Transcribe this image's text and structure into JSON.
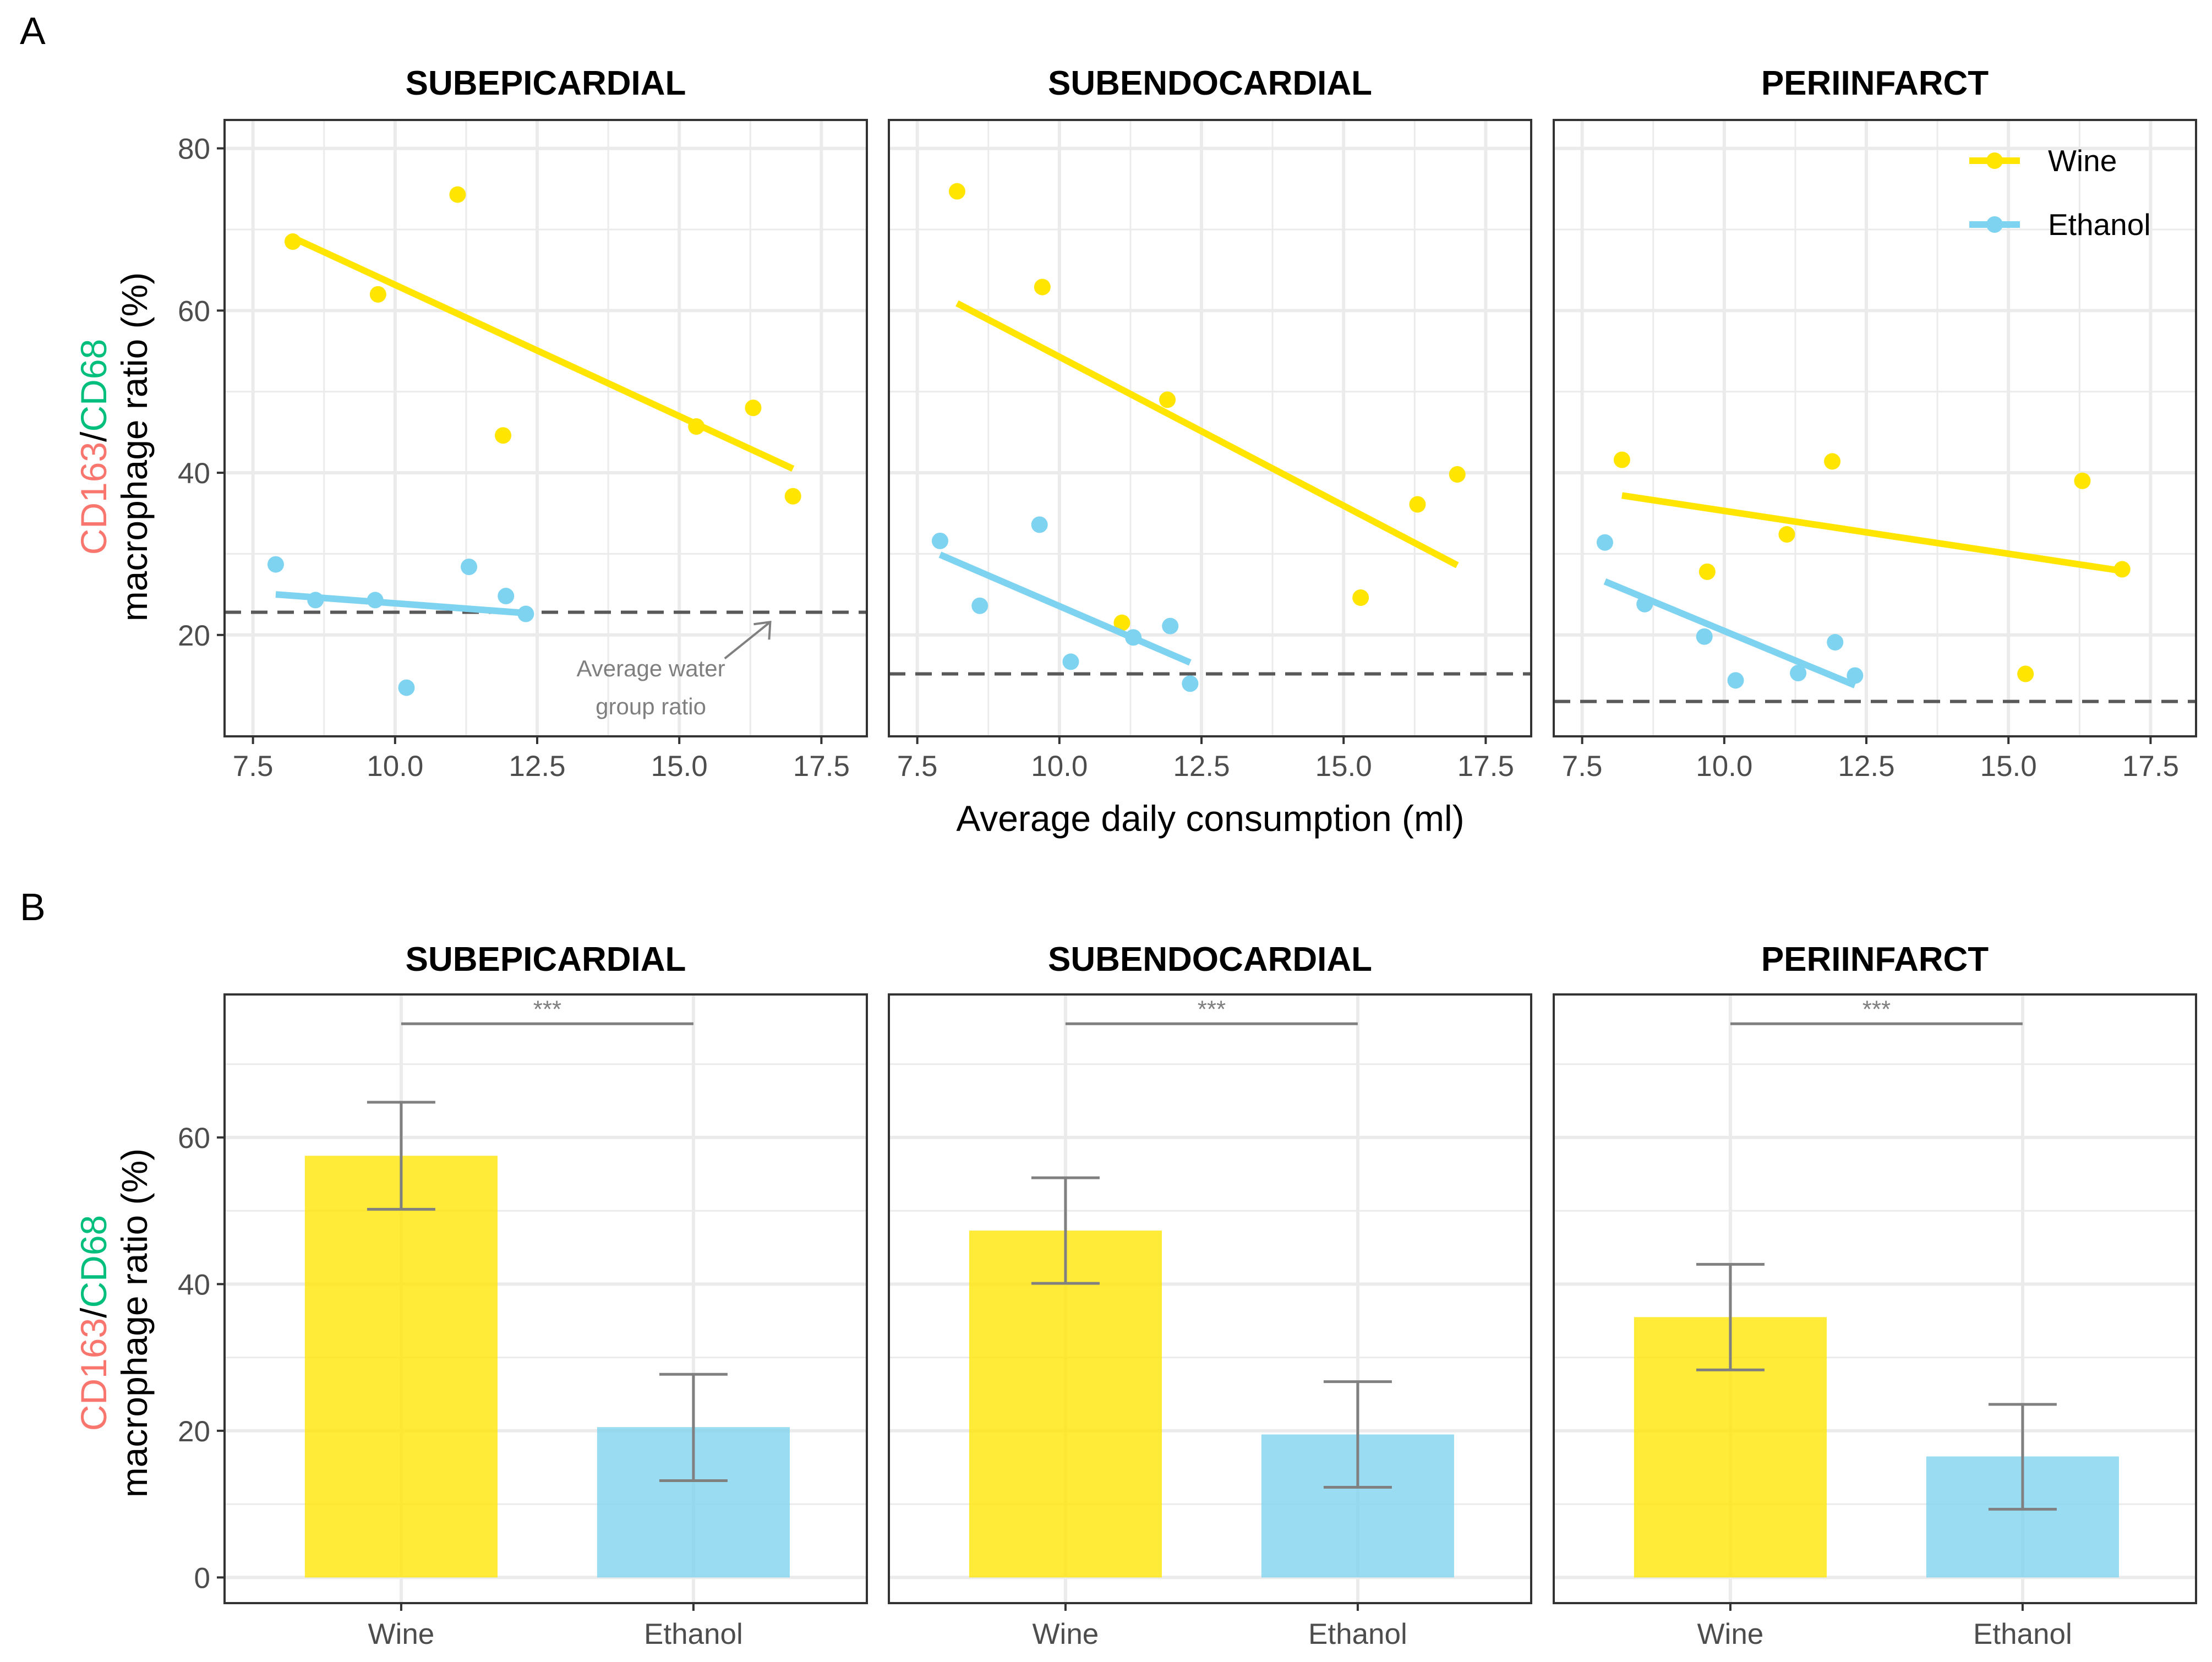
{
  "panel_labels": [
    "A",
    "B"
  ],
  "facets": [
    "SUBEPICARDIAL",
    "SUBENDOCARDIAL",
    "PERIINFARCT"
  ],
  "colors": {
    "wine": "#FFE500",
    "ethanol": "#7ED3F0",
    "ylab_cd163": "#F8766D",
    "ylab_cd68": "#00BF7D",
    "water_line": "#595959",
    "errorbar": "#808080",
    "grid": "#EBEBEB",
    "panel_border": "#333333"
  },
  "ylabel": {
    "part_cd163": "CD163",
    "part_sep": "/",
    "part_cd68": "CD68",
    "line2": "macrophage ratio (%)"
  },
  "chart_data": [
    {
      "type": "scatter",
      "panel": "A",
      "xlabel": "Average daily consumption (ml)",
      "xlim": [
        7.0,
        18.3
      ],
      "ylim": [
        7.5,
        83.5
      ],
      "xticks": [
        "7.5",
        "10.0",
        "12.5",
        "15.0",
        "17.5"
      ],
      "yticks": [
        "20",
        "40",
        "60",
        "80"
      ],
      "legend": {
        "position": "top-right",
        "entries": [
          "Wine",
          "Ethanol"
        ]
      },
      "annotation": [
        "Average water",
        "group ratio"
      ],
      "facets": [
        {
          "name": "SUBEPICARDIAL",
          "water_avg": 22.8,
          "series": [
            {
              "name": "Wine",
              "points": [
                [
                  8.2,
                  68.5
                ],
                [
                  9.7,
                  62.0
                ],
                [
                  11.1,
                  74.3
                ],
                [
                  11.9,
                  44.6
                ],
                [
                  15.3,
                  45.7
                ],
                [
                  16.3,
                  48.0
                ],
                [
                  17.0,
                  37.1
                ]
              ],
              "fit": [
                [
                  8.2,
                  69.0
                ],
                [
                  17.0,
                  40.5
                ]
              ]
            },
            {
              "name": "Ethanol",
              "points": [
                [
                  7.9,
                  28.7
                ],
                [
                  8.6,
                  24.3
                ],
                [
                  9.65,
                  24.3
                ],
                [
                  10.2,
                  13.5
                ],
                [
                  11.3,
                  28.4
                ],
                [
                  11.95,
                  24.8
                ],
                [
                  12.3,
                  22.6
                ]
              ],
              "fit": [
                [
                  7.9,
                  25.0
                ],
                [
                  12.3,
                  22.7
                ]
              ]
            }
          ]
        },
        {
          "name": "SUBENDOCARDIAL",
          "water_avg": 15.2,
          "series": [
            {
              "name": "Wine",
              "points": [
                [
                  8.2,
                  74.7
                ],
                [
                  9.7,
                  62.9
                ],
                [
                  11.1,
                  21.5
                ],
                [
                  11.9,
                  49.0
                ],
                [
                  15.3,
                  24.6
                ],
                [
                  16.3,
                  36.1
                ],
                [
                  17.0,
                  39.8
                ]
              ],
              "fit": [
                [
                  8.2,
                  60.9
                ],
                [
                  17.0,
                  28.6
                ]
              ]
            },
            {
              "name": "Ethanol",
              "points": [
                [
                  7.9,
                  31.6
                ],
                [
                  8.6,
                  23.6
                ],
                [
                  9.65,
                  33.6
                ],
                [
                  10.2,
                  16.7
                ],
                [
                  11.3,
                  19.7
                ],
                [
                  11.95,
                  21.1
                ],
                [
                  12.3,
                  14.0
                ]
              ],
              "fit": [
                [
                  7.9,
                  29.9
                ],
                [
                  12.3,
                  16.6
                ]
              ]
            }
          ]
        },
        {
          "name": "PERIINFARCT",
          "water_avg": 11.8,
          "series": [
            {
              "name": "Wine",
              "points": [
                [
                  8.2,
                  41.6
                ],
                [
                  9.7,
                  27.8
                ],
                [
                  11.1,
                  32.4
                ],
                [
                  11.9,
                  41.4
                ],
                [
                  15.3,
                  15.2
                ],
                [
                  16.3,
                  39.0
                ],
                [
                  17.0,
                  28.1
                ]
              ],
              "fit": [
                [
                  8.2,
                  37.2
                ],
                [
                  17.0,
                  27.9
                ]
              ]
            },
            {
              "name": "Ethanol",
              "points": [
                [
                  7.9,
                  31.4
                ],
                [
                  8.6,
                  23.8
                ],
                [
                  9.65,
                  19.8
                ],
                [
                  10.2,
                  14.4
                ],
                [
                  11.3,
                  15.3
                ],
                [
                  11.95,
                  19.1
                ],
                [
                  12.3,
                  15.0
                ]
              ],
              "fit": [
                [
                  7.9,
                  26.6
                ],
                [
                  12.3,
                  13.8
                ]
              ]
            }
          ]
        }
      ]
    },
    {
      "type": "bar",
      "panel": "B",
      "categories": [
        "Wine",
        "Ethanol"
      ],
      "ylim": [
        -3.5,
        79.5
      ],
      "yticks": [
        "0",
        "20",
        "40",
        "60"
      ],
      "significance": "***",
      "facets": [
        {
          "name": "SUBEPICARDIAL",
          "values": [
            57.5,
            20.5
          ],
          "errors": [
            [
              50.2,
              64.8
            ],
            [
              13.2,
              27.7
            ]
          ]
        },
        {
          "name": "SUBENDOCARDIAL",
          "values": [
            47.3,
            19.5
          ],
          "errors": [
            [
              40.1,
              54.5
            ],
            [
              12.3,
              26.7
            ]
          ]
        },
        {
          "name": "PERIINFARCT",
          "values": [
            35.5,
            16.5
          ],
          "errors": [
            [
              28.3,
              42.7
            ],
            [
              9.3,
              23.6
            ]
          ]
        }
      ]
    }
  ]
}
